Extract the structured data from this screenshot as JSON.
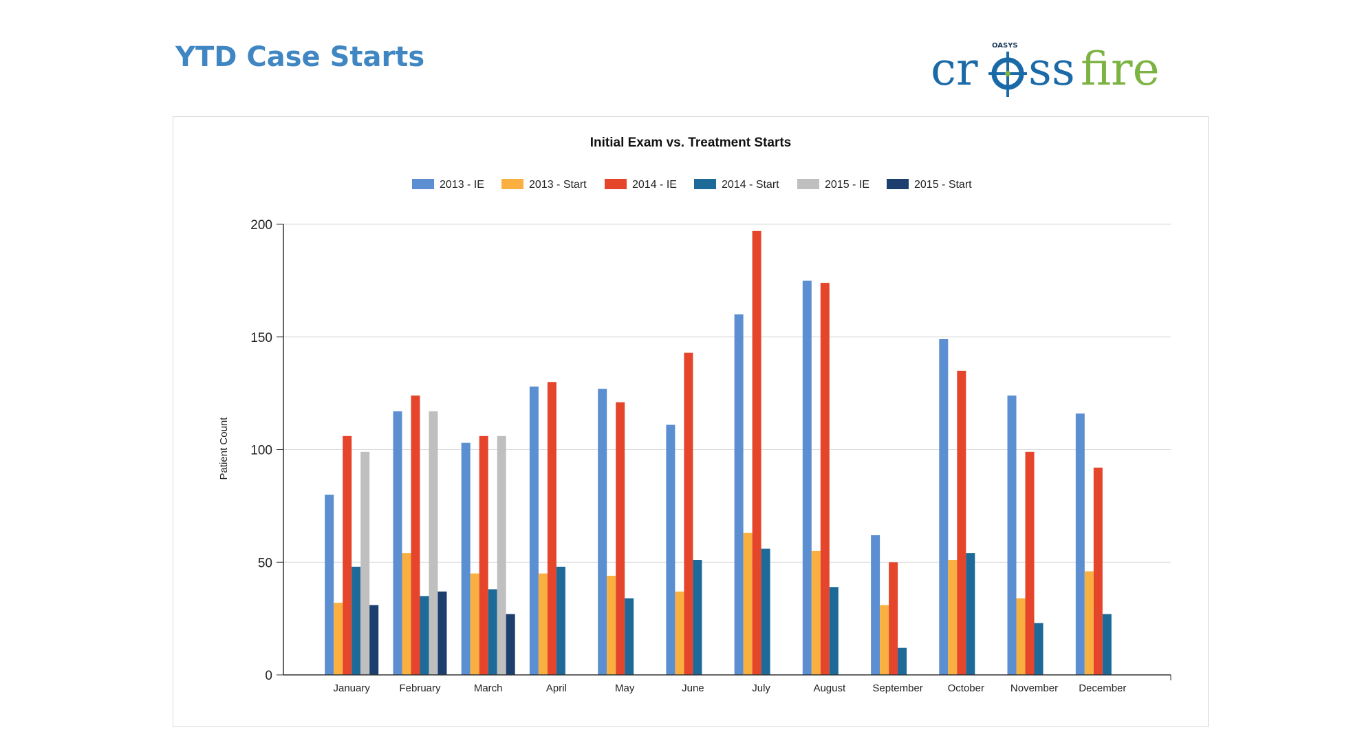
{
  "page": {
    "title": "YTD Case Starts"
  },
  "logo": {
    "small_text": "OASYS",
    "text_main_left": "cr",
    "text_main_mid": "ss",
    "text_main_right": "fire",
    "color_blue": "#1a6aa8",
    "color_green": "#7cb342"
  },
  "chart_data": {
    "type": "bar",
    "title": "Initial Exam vs. Treatment Starts",
    "xlabel": "",
    "ylabel": "Patient Count",
    "ylim": [
      0,
      200
    ],
    "yticks": [
      0,
      50,
      100,
      150,
      200
    ],
    "grid": true,
    "legend_position": "top",
    "categories": [
      "January",
      "February",
      "March",
      "April",
      "May",
      "June",
      "July",
      "August",
      "September",
      "October",
      "November",
      "December"
    ],
    "series": [
      {
        "name": "2013 - IE",
        "color": "#5b8fd1",
        "values": [
          80,
          117,
          103,
          128,
          127,
          111,
          160,
          175,
          62,
          149,
          124,
          116
        ]
      },
      {
        "name": "2013 - Start",
        "color": "#f9b041",
        "values": [
          32,
          54,
          45,
          45,
          44,
          37,
          63,
          55,
          31,
          51,
          34,
          46
        ]
      },
      {
        "name": "2014 - IE",
        "color": "#e5452a",
        "values": [
          106,
          124,
          106,
          130,
          121,
          143,
          197,
          174,
          50,
          135,
          99,
          92
        ]
      },
      {
        "name": "2014 - Start",
        "color": "#1d6a99",
        "values": [
          48,
          35,
          38,
          48,
          34,
          51,
          56,
          39,
          12,
          54,
          23,
          27
        ]
      },
      {
        "name": "2015 - IE",
        "color": "#bfbfbf",
        "values": [
          99,
          117,
          106,
          null,
          null,
          null,
          null,
          null,
          null,
          null,
          null,
          null
        ]
      },
      {
        "name": "2015 - Start",
        "color": "#1c3f6e",
        "values": [
          31,
          37,
          27,
          null,
          null,
          null,
          null,
          null,
          null,
          null,
          null,
          null
        ]
      }
    ]
  }
}
